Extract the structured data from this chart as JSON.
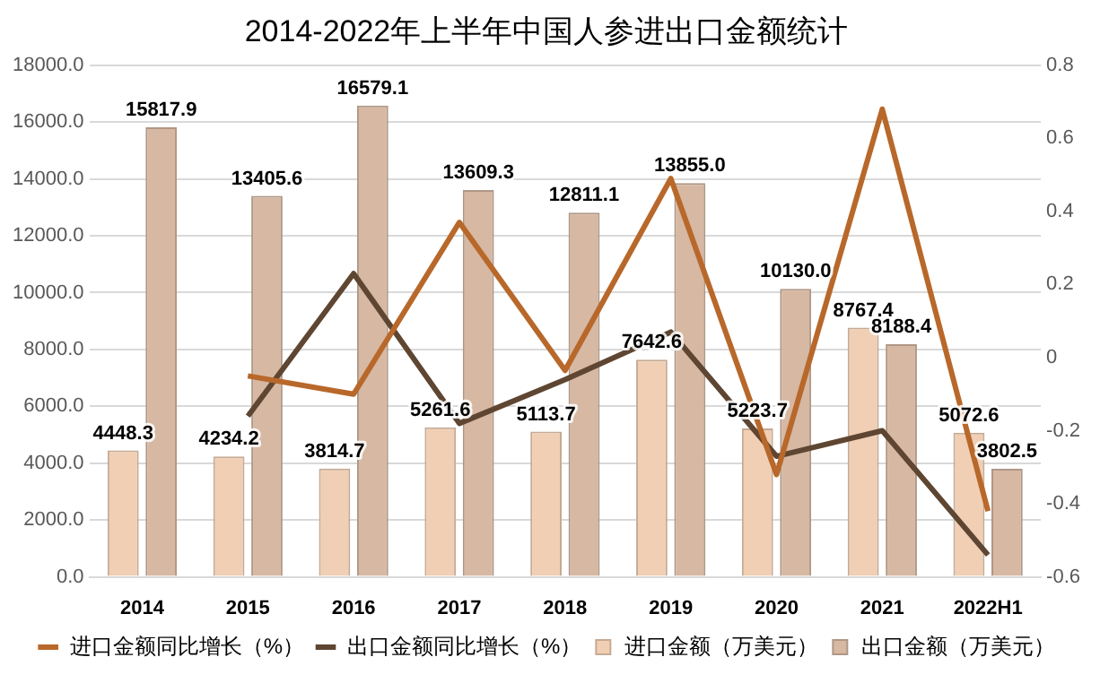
{
  "chart_data": {
    "type": "bar",
    "title": "2014-2022年上半年中国人参进出口金额统计",
    "categories": [
      "2014",
      "2015",
      "2016",
      "2017",
      "2018",
      "2019",
      "2020",
      "2021",
      "2022H1"
    ],
    "series": [
      {
        "name": "进口金额（万美元）",
        "color": "#f0cfb5",
        "values": [
          4448.3,
          4234.2,
          3814.7,
          5261.6,
          5113.7,
          7642.6,
          5223.7,
          8767.4,
          5072.6
        ]
      },
      {
        "name": "出口金额（万美元）",
        "color": "#d6b8a3",
        "values": [
          15817.9,
          13405.6,
          16579.1,
          13609.3,
          12811.1,
          13855.0,
          10130.0,
          8188.4,
          3802.5
        ]
      },
      {
        "name": "进口金额同比增长（%）",
        "type": "line",
        "axis": "y2",
        "color": "#b8682a",
        "values": [
          null,
          -0.05,
          -0.1,
          0.37,
          -0.035,
          0.49,
          -0.32,
          0.68,
          -0.42
        ]
      },
      {
        "name": "出口金额同比增长（%）",
        "type": "line",
        "axis": "y2",
        "color": "#5e4632",
        "values": [
          null,
          -0.16,
          0.23,
          -0.18,
          -0.06,
          0.07,
          -0.27,
          -0.2,
          -0.54
        ]
      }
    ],
    "ylim": [
      0,
      18000
    ],
    "yticks": [
      {
        "value": 0,
        "label": "0.0"
      },
      {
        "value": 2000,
        "label": "2000.0"
      },
      {
        "value": 4000,
        "label": "4000.0"
      },
      {
        "value": 6000,
        "label": "6000.0"
      },
      {
        "value": 8000,
        "label": "8000.0"
      },
      {
        "value": 10000,
        "label": "10000.0"
      },
      {
        "value": 12000,
        "label": "12000.0"
      },
      {
        "value": 14000,
        "label": "14000.0"
      },
      {
        "value": 16000,
        "label": "16000.0"
      },
      {
        "value": 18000,
        "label": "18000.0"
      }
    ],
    "y2lim": [
      -0.6,
      0.8
    ],
    "y2ticks": [
      -0.6,
      -0.4,
      -0.2,
      0,
      0.2,
      0.4,
      0.6,
      0.8
    ],
    "grid": "y",
    "legend": "bottom",
    "marker": "none",
    "line_style": "solid",
    "value_labels": [
      [
        "4448.3",
        "4234.2",
        "3814.7",
        "5261.6",
        "5113.7",
        "7642.6",
        "5223.7",
        "8767.4",
        "5072.6"
      ],
      [
        "15817.9",
        "13405.6",
        "16579.1",
        "13609.3",
        "12811.1",
        "13855.0",
        "10130.0",
        "8188.4",
        "3802.5"
      ],
      null,
      null
    ]
  }
}
